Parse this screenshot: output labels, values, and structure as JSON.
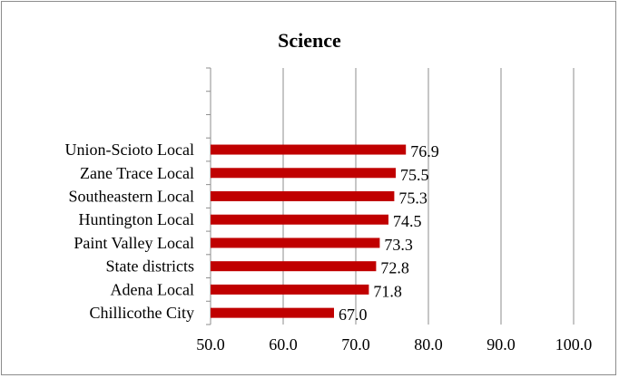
{
  "chart_data": {
    "type": "bar",
    "orientation": "horizontal",
    "title": "Science",
    "xlabel": "",
    "ylabel": "",
    "categories": [
      "Union-Scioto Local",
      "Zane Trace Local",
      "Southeastern Local",
      "Huntington Local",
      "Paint Valley Local",
      "State districts",
      "Adena Local",
      "Chillicothe City"
    ],
    "values": [
      76.9,
      75.5,
      75.3,
      74.5,
      73.3,
      72.8,
      71.8,
      67.0
    ],
    "data_labels": [
      "76.9",
      "75.5",
      "75.3",
      "74.5",
      "73.3",
      "72.8",
      "71.8",
      "67.0"
    ],
    "xlim": [
      50,
      100
    ],
    "x_ticks": [
      "50.0",
      "60.0",
      "70.0",
      "80.0",
      "90.0",
      "100.0"
    ],
    "x_tick_values": [
      50,
      60,
      70,
      80,
      90,
      100
    ],
    "grid": "vertical",
    "legend": "none",
    "bar_color": "#C00000",
    "gridline_color": "#8c8c8c"
  }
}
